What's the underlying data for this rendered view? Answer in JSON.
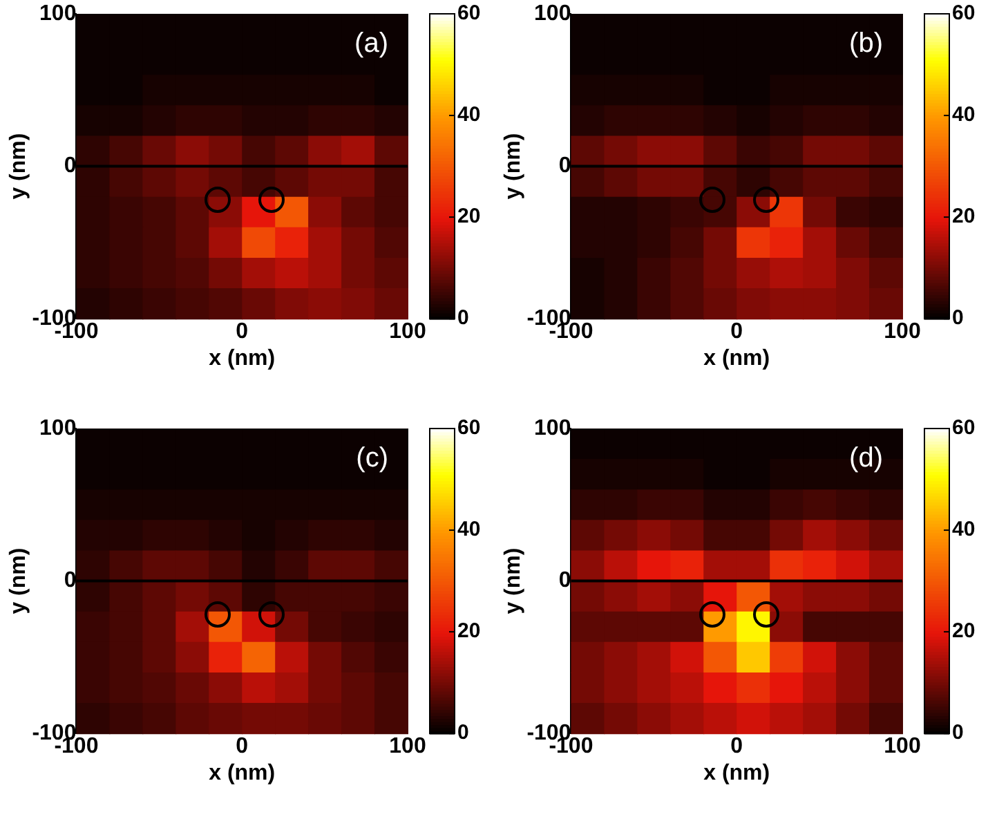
{
  "chart_data": [
    {
      "type": "heatmap",
      "xlabel": "x (nm)",
      "ylabel": "y (nm)",
      "annotations": [
        "(a)"
      ],
      "x": [
        -90,
        -70,
        -50,
        -30,
        -10,
        10,
        30,
        50,
        70,
        90
      ],
      "y": [
        90,
        70,
        50,
        30,
        10,
        -10,
        -30,
        -50,
        -70,
        -90
      ],
      "xlim": [
        -100,
        100
      ],
      "xticks": [
        -100,
        0,
        100
      ],
      "ylim": [
        -100,
        100
      ],
      "yticks": [
        -100,
        0,
        100
      ],
      "clim": [
        0,
        60
      ],
      "cticks": [
        0,
        20,
        40,
        60
      ],
      "ref_lines": [
        {
          "axis": "y",
          "value": 0,
          "color": "#000000"
        }
      ],
      "cells": [
        [
          1,
          1,
          1,
          1,
          1,
          1,
          1,
          1,
          1,
          1
        ],
        [
          1,
          1,
          1,
          1,
          1,
          1,
          1,
          1,
          1,
          1
        ],
        [
          1,
          1,
          2,
          2,
          2,
          2,
          2,
          2,
          2,
          1
        ],
        [
          2,
          2,
          3,
          4,
          4,
          3,
          3,
          4,
          4,
          3
        ],
        [
          4,
          6,
          9,
          12,
          10,
          6,
          8,
          12,
          14,
          8
        ],
        [
          4,
          6,
          8,
          10,
          8,
          6,
          8,
          10,
          10,
          6
        ],
        [
          4,
          5,
          6,
          8,
          12,
          20,
          30,
          12,
          8,
          6
        ],
        [
          4,
          5,
          6,
          8,
          14,
          28,
          22,
          14,
          10,
          7
        ],
        [
          4,
          5,
          6,
          7,
          10,
          14,
          16,
          14,
          10,
          8
        ],
        [
          3,
          4,
          5,
          6,
          7,
          9,
          11,
          12,
          11,
          9
        ]
      ]
    },
    {
      "type": "heatmap",
      "xlabel": "x (nm)",
      "ylabel": "y (nm)",
      "annotations": [
        "(b)"
      ],
      "x": [
        -90,
        -70,
        -50,
        -30,
        -10,
        10,
        30,
        50,
        70,
        90
      ],
      "y": [
        90,
        70,
        50,
        30,
        10,
        -10,
        -30,
        -50,
        -70,
        -90
      ],
      "xlim": [
        -100,
        100
      ],
      "xticks": [
        -100,
        0,
        100
      ],
      "ylim": [
        -100,
        100
      ],
      "yticks": [
        -100,
        0,
        100
      ],
      "clim": [
        0,
        60
      ],
      "cticks": [
        0,
        20,
        40,
        60
      ],
      "ref_lines": [
        {
          "axis": "y",
          "value": 0,
          "color": "#000000"
        }
      ],
      "cells": [
        [
          1,
          1,
          1,
          1,
          1,
          1,
          1,
          1,
          1,
          1
        ],
        [
          1,
          1,
          1,
          1,
          1,
          1,
          1,
          1,
          1,
          1
        ],
        [
          2,
          2,
          2,
          2,
          1,
          1,
          2,
          2,
          2,
          2
        ],
        [
          3,
          4,
          4,
          4,
          3,
          2,
          3,
          4,
          4,
          3
        ],
        [
          8,
          10,
          12,
          12,
          8,
          5,
          6,
          10,
          10,
          8
        ],
        [
          6,
          8,
          10,
          10,
          6,
          4,
          6,
          8,
          8,
          6
        ],
        [
          3,
          3,
          4,
          5,
          6,
          12,
          25,
          10,
          5,
          4
        ],
        [
          3,
          3,
          4,
          6,
          10,
          25,
          22,
          14,
          9,
          6
        ],
        [
          2,
          3,
          5,
          7,
          10,
          13,
          15,
          14,
          11,
          8
        ],
        [
          2,
          3,
          5,
          7,
          9,
          11,
          12,
          12,
          11,
          9
        ]
      ]
    },
    {
      "type": "heatmap",
      "xlabel": "x (nm)",
      "ylabel": "y (nm)",
      "annotations": [
        "(c)"
      ],
      "x": [
        -90,
        -70,
        -50,
        -30,
        -10,
        10,
        30,
        50,
        70,
        90
      ],
      "y": [
        90,
        70,
        50,
        30,
        10,
        -10,
        -30,
        -50,
        -70,
        -90
      ],
      "xlim": [
        -100,
        100
      ],
      "xticks": [
        -100,
        0,
        100
      ],
      "ylim": [
        -100,
        100
      ],
      "yticks": [
        -100,
        0,
        100
      ],
      "clim": [
        0,
        60
      ],
      "cticks": [
        0,
        20,
        40,
        60
      ],
      "ref_lines": [
        {
          "axis": "y",
          "value": 0,
          "color": "#000000"
        }
      ],
      "cells": [
        [
          1,
          1,
          1,
          1,
          1,
          1,
          1,
          1,
          1,
          1
        ],
        [
          1,
          1,
          1,
          1,
          1,
          1,
          1,
          1,
          1,
          1
        ],
        [
          2,
          2,
          2,
          2,
          2,
          2,
          2,
          2,
          2,
          2
        ],
        [
          3,
          3,
          4,
          4,
          3,
          2,
          3,
          4,
          4,
          3
        ],
        [
          4,
          6,
          8,
          8,
          6,
          3,
          5,
          8,
          8,
          6
        ],
        [
          4,
          6,
          8,
          10,
          8,
          4,
          6,
          6,
          6,
          5
        ],
        [
          5,
          6,
          8,
          14,
          30,
          18,
          10,
          6,
          5,
          4
        ],
        [
          5,
          6,
          8,
          12,
          22,
          32,
          16,
          10,
          7,
          5
        ],
        [
          5,
          6,
          7,
          9,
          12,
          16,
          14,
          10,
          8,
          6
        ],
        [
          4,
          5,
          6,
          8,
          9,
          10,
          10,
          9,
          8,
          6
        ]
      ]
    },
    {
      "type": "heatmap",
      "xlabel": "x (nm)",
      "ylabel": "y (nm)",
      "annotations": [
        "(d)"
      ],
      "x": [
        -90,
        -70,
        -50,
        -30,
        -10,
        10,
        30,
        50,
        70,
        90
      ],
      "y": [
        90,
        70,
        50,
        30,
        10,
        -10,
        -30,
        -50,
        -70,
        -90
      ],
      "xlim": [
        -100,
        100
      ],
      "xticks": [
        -100,
        0,
        100
      ],
      "ylim": [
        -100,
        100
      ],
      "yticks": [
        -100,
        0,
        100
      ],
      "clim": [
        0,
        60
      ],
      "cticks": [
        0,
        20,
        40,
        60
      ],
      "ref_lines": [
        {
          "axis": "y",
          "value": 0,
          "color": "#000000"
        }
      ],
      "cells": [
        [
          1,
          1,
          1,
          1,
          1,
          1,
          1,
          1,
          1,
          1
        ],
        [
          2,
          2,
          2,
          2,
          1,
          1,
          2,
          2,
          2,
          2
        ],
        [
          4,
          4,
          5,
          5,
          3,
          3,
          5,
          6,
          5,
          4
        ],
        [
          8,
          10,
          12,
          10,
          6,
          6,
          10,
          14,
          12,
          9
        ],
        [
          12,
          16,
          20,
          22,
          14,
          14,
          24,
          22,
          18,
          14
        ],
        [
          10,
          12,
          14,
          12,
          20,
          30,
          14,
          12,
          12,
          10
        ],
        [
          8,
          8,
          8,
          8,
          40,
          50,
          12,
          6,
          6,
          6
        ],
        [
          10,
          12,
          14,
          18,
          30,
          45,
          26,
          18,
          12,
          8
        ],
        [
          10,
          12,
          14,
          16,
          20,
          24,
          20,
          16,
          12,
          8
        ],
        [
          8,
          10,
          12,
          14,
          16,
          18,
          16,
          14,
          10,
          6
        ]
      ]
    }
  ]
}
